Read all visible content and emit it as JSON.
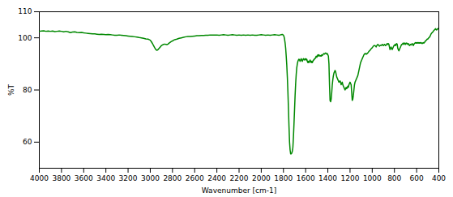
{
  "chart_data": {
    "type": "line",
    "xlabel": "Wavenumber [cm-1]",
    "ylabel": "%T",
    "xlim": [
      4000,
      400
    ],
    "ylim": [
      50,
      110
    ],
    "xticks": [
      4000,
      3800,
      3600,
      3400,
      3200,
      3000,
      2800,
      2600,
      2400,
      2200,
      2000,
      1800,
      1600,
      1400,
      1200,
      1000,
      800,
      600,
      400
    ],
    "yticks": [
      60,
      80,
      100,
      110
    ],
    "grid": false,
    "color": "#008800",
    "x": [
      4000,
      3980,
      3960,
      3940,
      3920,
      3900,
      3880,
      3860,
      3840,
      3820,
      3800,
      3780,
      3760,
      3740,
      3720,
      3700,
      3680,
      3660,
      3640,
      3620,
      3600,
      3580,
      3560,
      3540,
      3520,
      3500,
      3480,
      3460,
      3440,
      3420,
      3400,
      3380,
      3360,
      3340,
      3320,
      3300,
      3280,
      3260,
      3240,
      3220,
      3200,
      3180,
      3160,
      3140,
      3120,
      3100,
      3080,
      3060,
      3040,
      3020,
      3010,
      3000,
      2990,
      2980,
      2970,
      2960,
      2950,
      2940,
      2930,
      2920,
      2910,
      2900,
      2890,
      2880,
      2870,
      2860,
      2850,
      2840,
      2830,
      2820,
      2810,
      2800,
      2790,
      2780,
      2760,
      2740,
      2720,
      2700,
      2680,
      2660,
      2640,
      2620,
      2600,
      2580,
      2560,
      2540,
      2520,
      2500,
      2480,
      2460,
      2440,
      2420,
      2400,
      2380,
      2360,
      2340,
      2320,
      2300,
      2280,
      2260,
      2240,
      2220,
      2200,
      2180,
      2160,
      2140,
      2120,
      2100,
      2080,
      2060,
      2040,
      2020,
      2000,
      1980,
      1960,
      1940,
      1920,
      1900,
      1880,
      1860,
      1840,
      1830,
      1820,
      1810,
      1805,
      1800,
      1795,
      1790,
      1785,
      1780,
      1775,
      1770,
      1765,
      1760,
      1755,
      1750,
      1745,
      1740,
      1735,
      1730,
      1725,
      1720,
      1718,
      1715,
      1710,
      1705,
      1700,
      1695,
      1690,
      1685,
      1680,
      1675,
      1670,
      1665,
      1660,
      1655,
      1650,
      1645,
      1640,
      1635,
      1630,
      1625,
      1620,
      1615,
      1610,
      1605,
      1600,
      1595,
      1590,
      1585,
      1580,
      1575,
      1570,
      1565,
      1560,
      1555,
      1550,
      1545,
      1540,
      1535,
      1530,
      1525,
      1520,
      1515,
      1510,
      1505,
      1500,
      1495,
      1490,
      1485,
      1480,
      1475,
      1470,
      1465,
      1460,
      1455,
      1450,
      1445,
      1440,
      1435,
      1430,
      1425,
      1420,
      1415,
      1410,
      1405,
      1400,
      1395,
      1390,
      1385,
      1380,
      1375,
      1370,
      1365,
      1360,
      1355,
      1350,
      1345,
      1340,
      1335,
      1330,
      1325,
      1320,
      1315,
      1310,
      1305,
      1300,
      1295,
      1290,
      1285,
      1280,
      1275,
      1270,
      1265,
      1260,
      1255,
      1250,
      1245,
      1240,
      1235,
      1230,
      1225,
      1220,
      1215,
      1210,
      1205,
      1200,
      1195,
      1190,
      1185,
      1180,
      1175,
      1170,
      1165,
      1160,
      1155,
      1150,
      1145,
      1140,
      1135,
      1130,
      1125,
      1120,
      1115,
      1110,
      1105,
      1100,
      1095,
      1090,
      1085,
      1080,
      1075,
      1070,
      1065,
      1060,
      1055,
      1050,
      1045,
      1040,
      1035,
      1030,
      1025,
      1020,
      1015,
      1010,
      1005,
      1000,
      995,
      990,
      985,
      980,
      975,
      970,
      965,
      960,
      955,
      950,
      945,
      940,
      935,
      930,
      925,
      920,
      915,
      910,
      905,
      900,
      895,
      890,
      885,
      880,
      875,
      870,
      865,
      860,
      855,
      850,
      845,
      840,
      835,
      830,
      825,
      820,
      815,
      810,
      805,
      800,
      795,
      790,
      785,
      780,
      775,
      770,
      765,
      760,
      755,
      750,
      745,
      740,
      735,
      730,
      725,
      720,
      715,
      710,
      705,
      700,
      695,
      690,
      685,
      680,
      675,
      670,
      665,
      660,
      655,
      650,
      645,
      640,
      635,
      630,
      625,
      620,
      615,
      610,
      605,
      600,
      595,
      590,
      585,
      580,
      575,
      570,
      565,
      560,
      555,
      550,
      545,
      540,
      535,
      530,
      525,
      520,
      515,
      510,
      505,
      500,
      495,
      490,
      485,
      480,
      475,
      470,
      465,
      460,
      455,
      450,
      445,
      440,
      435,
      430,
      425,
      420,
      415,
      410,
      405,
      400
    ],
    "values": [
      102.5,
      102.6,
      102.7,
      102.5,
      102.6,
      102.5,
      102.6,
      102.4,
      102.5,
      102.6,
      102.5,
      102.3,
      102.5,
      102.3,
      102.0,
      102.2,
      102.3,
      102.1,
      102.0,
      102.1,
      101.9,
      101.8,
      101.7,
      101.6,
      101.5,
      101.5,
      101.4,
      101.3,
      101.4,
      101.3,
      101.2,
      101.3,
      101.2,
      101.1,
      101.0,
      101.0,
      101.1,
      101.0,
      100.9,
      100.8,
      100.7,
      100.6,
      100.5,
      100.4,
      100.3,
      100.1,
      100.0,
      99.8,
      99.6,
      99.5,
      99.3,
      99.1,
      98.5,
      97.8,
      97.0,
      96.2,
      95.5,
      95.2,
      95.5,
      96.0,
      96.5,
      97.0,
      97.3,
      97.5,
      97.6,
      97.5,
      97.4,
      97.6,
      98.0,
      98.3,
      98.6,
      98.8,
      99.1,
      99.3,
      99.5,
      99.8,
      100.0,
      100.2,
      100.4,
      100.5,
      100.5,
      100.6,
      100.7,
      100.8,
      100.8,
      100.9,
      100.9,
      101.0,
      101.0,
      101.1,
      101.1,
      101.1,
      101.1,
      101.0,
      101.1,
      101.2,
      101.1,
      101.0,
      101.1,
      101.2,
      101.1,
      101.0,
      101.1,
      101.0,
      101.1,
      101.0,
      101.1,
      101.0,
      101.1,
      101.0,
      101.0,
      101.1,
      101.2,
      101.1,
      101.0,
      101.1,
      101.0,
      101.1,
      101.2,
      101.1,
      101.0,
      101.1,
      101.2,
      101.3,
      101.2,
      101.0,
      100.5,
      99.5,
      98.0,
      96.0,
      93.0,
      89.5,
      85.0,
      79.5,
      73.0,
      66.0,
      60.0,
      57.0,
      55.5,
      55.5,
      55.8,
      56.5,
      57.0,
      58.0,
      62.0,
      67.0,
      72.5,
      78.0,
      82.5,
      86.0,
      88.5,
      90.0,
      91.0,
      91.5,
      91.8,
      91.5,
      91.0,
      91.5,
      92.0,
      91.5,
      91.0,
      91.5,
      92.0,
      91.8,
      91.5,
      91.8,
      92.0,
      91.5,
      91.8,
      91.0,
      90.5,
      91.0,
      90.5,
      91.0,
      91.5,
      91.0,
      90.5,
      91.0,
      90.5,
      91.0,
      91.5,
      91.5,
      92.0,
      92.0,
      92.5,
      93.0,
      92.5,
      93.0,
      93.5,
      93.0,
      93.5,
      93.2,
      93.0,
      93.2,
      93.0,
      93.5,
      93.2,
      93.5,
      93.8,
      94.0,
      93.8,
      94.0,
      94.2,
      94.0,
      93.8,
      94.0,
      93.5,
      93.0,
      90.0,
      82.0,
      76.0,
      75.5,
      76.5,
      79.0,
      82.0,
      84.0,
      85.5,
      86.5,
      87.0,
      87.5,
      87.0,
      86.0,
      85.0,
      84.5,
      84.0,
      83.5,
      83.0,
      83.2,
      83.5,
      83.0,
      82.0,
      82.5,
      83.0,
      82.0,
      81.5,
      81.0,
      80.5,
      80.0,
      80.5,
      81.0,
      80.5,
      81.0,
      81.5,
      81.0,
      82.0,
      82.5,
      83.0,
      82.5,
      82.0,
      79.0,
      76.0,
      76.5,
      78.0,
      80.0,
      82.0,
      83.0,
      83.5,
      84.0,
      84.5,
      85.0,
      85.5,
      86.5,
      87.5,
      88.5,
      89.5,
      90.5,
      91.0,
      91.5,
      92.0,
      92.5,
      93.0,
      93.5,
      93.8,
      94.0,
      93.8,
      94.0,
      93.8,
      94.0,
      94.2,
      94.5,
      94.8,
      95.0,
      95.2,
      95.5,
      95.8,
      96.0,
      96.2,
      96.5,
      96.8,
      97.0,
      97.0,
      97.0,
      96.8,
      96.5,
      97.0,
      97.2,
      97.5,
      97.3,
      97.0,
      96.8,
      97.0,
      97.2,
      97.0,
      97.2,
      97.5,
      97.3,
      97.0,
      97.2,
      97.5,
      97.3,
      97.0,
      97.2,
      97.5,
      97.8,
      97.5,
      97.8,
      97.5,
      96.5,
      95.5,
      96.0,
      96.5,
      96.0,
      95.5,
      96.0,
      96.5,
      97.0,
      97.0,
      97.5,
      97.0,
      97.5,
      97.8,
      97.5,
      96.0,
      95.5,
      95.0,
      95.5,
      96.0,
      96.5,
      97.0,
      97.5,
      97.5,
      97.8,
      98.0,
      97.5,
      97.8,
      98.0,
      97.5,
      97.8,
      98.0,
      97.8,
      97.5,
      97.8,
      97.5,
      97.0,
      97.2,
      97.5,
      97.3,
      97.5,
      97.8,
      97.5,
      97.0,
      97.5,
      97.8,
      98.0,
      98.2,
      98.0,
      98.2,
      98.0,
      98.2,
      98.0,
      98.2,
      98.0,
      98.2,
      98.0,
      98.2,
      98.0,
      97.8,
      98.0,
      98.2,
      98.0,
      98.2,
      98.5,
      98.8,
      99.0,
      99.2,
      99.5,
      99.5,
      99.8,
      100.0,
      100.2,
      100.5,
      101.0,
      101.5,
      101.8,
      102.0,
      102.2,
      102.5,
      102.8,
      103.0,
      103.2,
      103.5,
      103.2,
      103.0,
      103.2,
      103.5,
      103.5,
      103.8
    ]
  }
}
